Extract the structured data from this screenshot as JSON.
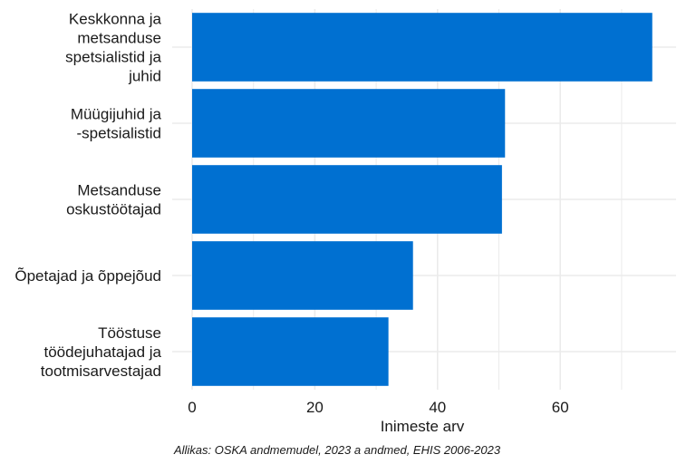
{
  "chart_data": {
    "type": "bar",
    "orientation": "horizontal",
    "categories": [
      [
        "Keskkonna ja",
        "metsanduse",
        "spetsialistid ja",
        "juhid"
      ],
      [
        "Müügijuhid ja",
        "-spetsialistid"
      ],
      [
        "Metsanduse",
        "oskustöötajad"
      ],
      [
        "Õpetajad ja õppejõud"
      ],
      [
        "Tööstuse",
        "töödejuhatajad ja",
        "tootmisarvestajad"
      ]
    ],
    "values": [
      75,
      51,
      50.5,
      36,
      32
    ],
    "xlabel": "Inimeste arv",
    "ylabel": "",
    "title": "",
    "xlim": [
      0,
      75
    ],
    "xticks": [
      0,
      20,
      40,
      60
    ],
    "grid": true,
    "bar_color": "#0070D1",
    "caption": "Allikas: OSKA andmemudel, 2023 a andmed, EHIS 2006-2023"
  }
}
